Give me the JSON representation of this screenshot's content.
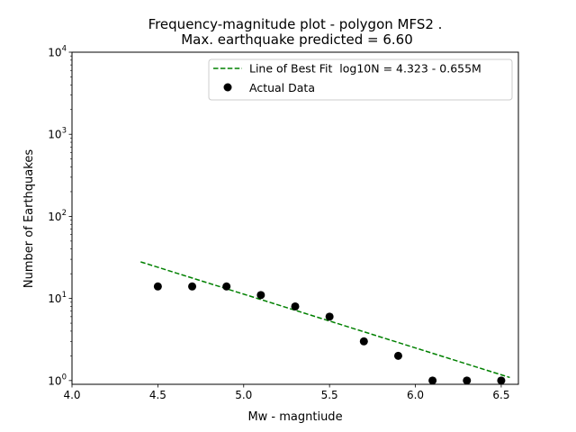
{
  "chart_data": {
    "type": "scatter",
    "title": "Frequency-magnitude plot - polygon MFS2 .",
    "subtitle": "Max. earthquake predicted = 6.60",
    "xlabel": "Mw - magntiude",
    "ylabel": "Number of Earthquakes",
    "xlim": [
      4.0,
      6.6
    ],
    "ylim": [
      0.9,
      10000
    ],
    "yscale": "log",
    "grid": false,
    "legend_position": "top-right",
    "x_ticks": [
      {
        "value": 4.0,
        "label": "4.0"
      },
      {
        "value": 4.5,
        "label": "4.5"
      },
      {
        "value": 5.0,
        "label": "5.0"
      },
      {
        "value": 5.5,
        "label": "5.5"
      },
      {
        "value": 6.0,
        "label": "6.0"
      },
      {
        "value": 6.5,
        "label": "6.5"
      }
    ],
    "y_ticks": [
      {
        "value": 1,
        "base": "10",
        "exp": "0"
      },
      {
        "value": 10,
        "base": "10",
        "exp": "1"
      },
      {
        "value": 100,
        "base": "10",
        "exp": "2"
      },
      {
        "value": 1000,
        "base": "10",
        "exp": "3"
      },
      {
        "value": 10000,
        "base": "10",
        "exp": "4"
      }
    ],
    "series": [
      {
        "name": "Line of Best Fit  log10N = 4.323 - 0.655M",
        "type": "line",
        "style": "dashed",
        "color": "#008000",
        "x": [
          4.4,
          6.55
        ],
        "y": [
          27.9,
          1.09
        ]
      },
      {
        "name": "Actual Data",
        "type": "scatter",
        "color": "#000000",
        "x": [
          4.5,
          4.7,
          4.9,
          5.1,
          5.3,
          5.5,
          5.7,
          5.9,
          6.1,
          6.3,
          6.5
        ],
        "y": [
          14,
          14,
          14,
          11,
          8,
          6,
          3,
          2,
          1,
          1,
          1
        ]
      }
    ]
  }
}
